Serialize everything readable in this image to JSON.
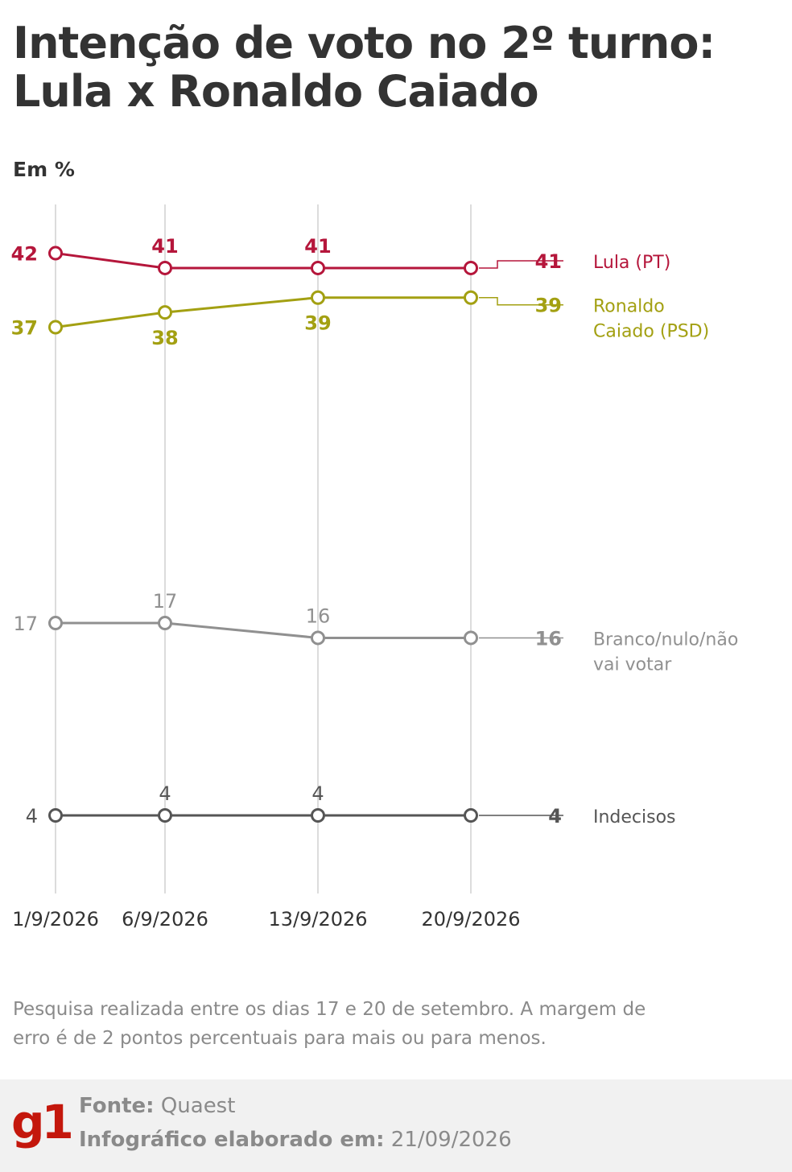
{
  "title_line1": "Intenção de voto no 2º turno:",
  "title_line2": "Lula x Ronaldo Caiado",
  "unit_label": "Em %",
  "chart_data": {
    "type": "line",
    "x": [
      "1/9/2026",
      "6/9/2026",
      "13/9/2026",
      "20/9/2026"
    ],
    "ylim": [
      0,
      45
    ],
    "grid": "vertical",
    "legend": "right-end labels",
    "series": [
      {
        "name": "Lula (PT)",
        "name_lines": [
          "Lula (PT)"
        ],
        "color": "#b5163b",
        "bold_labels": true,
        "values": [
          42,
          41,
          41,
          41
        ],
        "end_value": "41",
        "label_pos": [
          "left",
          "above",
          "above",
          "none"
        ]
      },
      {
        "name": "Ronaldo Caiado (PSD)",
        "name_lines": [
          "Ronaldo",
          "Caiado (PSD)"
        ],
        "color": "#a3a012",
        "bold_labels": true,
        "values": [
          37,
          38,
          39,
          39
        ],
        "end_value": "39",
        "label_pos": [
          "left",
          "below",
          "below",
          "none"
        ]
      },
      {
        "name": "Branco/nulo/não vai votar",
        "name_lines": [
          "Branco/nulo/não",
          "vai votar"
        ],
        "color": "#909090",
        "bold_labels": false,
        "values": [
          17,
          17,
          16,
          16
        ],
        "end_value": "16",
        "label_pos": [
          "left",
          "above",
          "above",
          "none"
        ]
      },
      {
        "name": "Indecisos",
        "name_lines": [
          "Indecisos"
        ],
        "color": "#555555",
        "bold_labels": false,
        "values": [
          4,
          4,
          4,
          4
        ],
        "end_value": "4",
        "label_pos": [
          "left",
          "above",
          "above",
          "none"
        ]
      }
    ]
  },
  "note": "Pesquisa realizada entre os dias 17 e 20 de setembro. A margem de erro é de 2 pontos percentuais para mais ou para menos.",
  "footer": {
    "logo": "g1",
    "source_label": "Fonte:",
    "source_value": "Quaest",
    "date_label": "Infográfico elaborado em:",
    "date_value": "21/09/2026"
  }
}
